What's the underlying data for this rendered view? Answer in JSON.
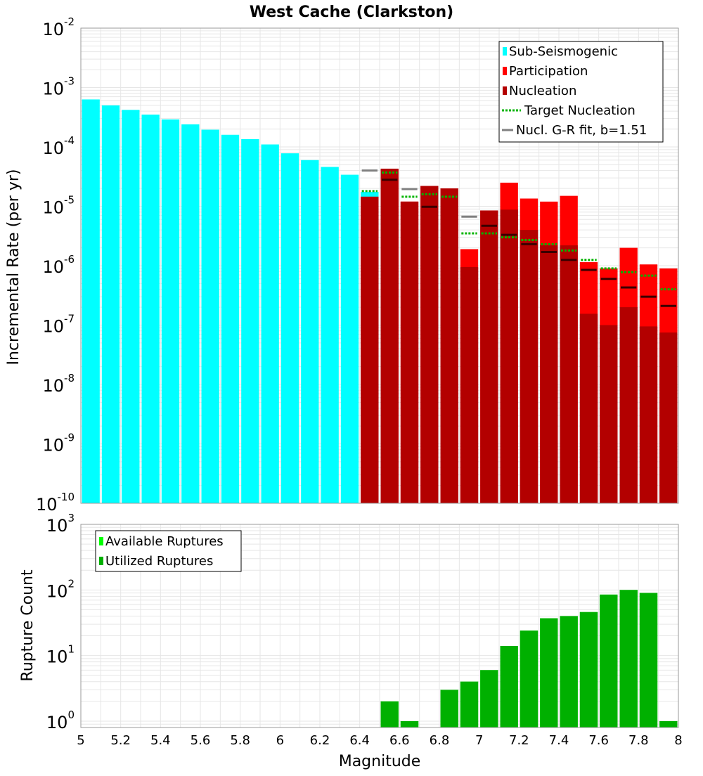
{
  "title": "West Cache (Clarkston)",
  "colors": {
    "sub_seismogenic": "#00ffff",
    "participation": "#ff0000",
    "nucleation": "#b30000",
    "target_nucleation": "#00b400",
    "gr_fit": "#808080",
    "nucl_tick": "#3a0000",
    "available": "#00ff00",
    "utilized": "#00b000",
    "grid": "#e6e6e6"
  },
  "x_axis": {
    "label": "Magnitude",
    "min": 5.0,
    "max": 8.0,
    "ticks": [
      "5",
      "5.2",
      "5.4",
      "5.6",
      "5.8",
      "6",
      "6.2",
      "6.4",
      "6.6",
      "6.8",
      "7",
      "7.2",
      "7.4",
      "7.6",
      "7.8",
      "8"
    ]
  },
  "chart_data": [
    {
      "type": "bar",
      "name": "rate-panel",
      "title": "West Cache (Clarkston)",
      "xlabel": "",
      "ylabel": "Incremental Rate (per yr)",
      "yscale": "log",
      "ylim": [
        1e-10,
        0.01
      ],
      "y_tick_labels": [
        {
          "base": "10",
          "exp": "-2"
        },
        {
          "base": "10",
          "exp": "-3"
        },
        {
          "base": "10",
          "exp": "-4"
        },
        {
          "base": "10",
          "exp": "-5"
        },
        {
          "base": "10",
          "exp": "-6"
        },
        {
          "base": "10",
          "exp": "-7"
        },
        {
          "base": "10",
          "exp": "-8"
        },
        {
          "base": "10",
          "exp": "-9"
        },
        {
          "base": "10",
          "exp": "-10"
        }
      ],
      "bin_width": 0.1,
      "legend": [
        "Sub-Seismogenic",
        "Participation",
        "Nucleation",
        "Target Nucleation",
        "Nucl. G-R fit, b=1.51"
      ],
      "legend_position": "top-right",
      "sub_seismogenic": {
        "x": [
          5.05,
          5.15,
          5.25,
          5.35,
          5.45,
          5.55,
          5.65,
          5.75,
          5.85,
          5.95,
          6.05,
          6.15,
          6.25,
          6.35,
          6.45
        ],
        "values": [
          0.00063,
          0.0005,
          0.00042,
          0.00035,
          0.00029,
          0.00024,
          0.000195,
          0.00016,
          0.000135,
          0.00011,
          7.8e-05,
          6e-05,
          4.6e-05,
          3.4e-05,
          1.75e-05
        ]
      },
      "participation": {
        "x": [
          6.45,
          6.55,
          6.65,
          6.75,
          6.85,
          6.95,
          7.05,
          7.15,
          7.25,
          7.35,
          7.45,
          7.55,
          7.65,
          7.75,
          7.85,
          7.95
        ],
        "values": [
          1.45e-05,
          4.3e-05,
          1.2e-05,
          2.2e-05,
          2e-05,
          1.9e-06,
          8.5e-06,
          2.5e-05,
          1.35e-05,
          1.2e-05,
          1.5e-05,
          1.15e-06,
          9e-07,
          2e-06,
          1.05e-06,
          9e-07
        ]
      },
      "nucleation": {
        "x": [
          6.45,
          6.55,
          6.65,
          6.75,
          6.85,
          6.95,
          7.05,
          7.15,
          7.25,
          7.35,
          7.45,
          7.55,
          7.65,
          7.75,
          7.85,
          7.95
        ],
        "values": [
          1.45e-05,
          4.3e-05,
          1.2e-05,
          2.2e-05,
          2e-05,
          9.5e-07,
          8.5e-06,
          8.8e-06,
          4e-06,
          2.2e-06,
          2.2e-06,
          1.55e-07,
          1e-07,
          2e-07,
          9.5e-08,
          7.5e-08
        ]
      },
      "target_nucleation": {
        "x": [
          6.45,
          6.55,
          6.65,
          6.75,
          6.85,
          6.95,
          7.05,
          7.15,
          7.25,
          7.35,
          7.45,
          7.55,
          7.65,
          7.75,
          7.85,
          7.95
        ],
        "values": [
          1.8e-05,
          3.7e-05,
          1.45e-05,
          1.6e-05,
          1.45e-05,
          3.5e-06,
          3.5e-06,
          3e-06,
          2.7e-06,
          2.3e-06,
          1.8e-06,
          1.25e-06,
          9e-07,
          7.8e-07,
          6.8e-07,
          4e-07
        ]
      },
      "gr_fit": {
        "x": [
          6.45,
          6.65,
          6.95
        ],
        "values": [
          4e-05,
          1.95e-05,
          6.7e-06
        ]
      },
      "nucl_gr_ticks": {
        "x": [
          6.55,
          6.75,
          7.05,
          7.15,
          7.25,
          7.35,
          7.45,
          7.55,
          7.65,
          7.75,
          7.85,
          7.95
        ],
        "values": [
          2.8e-05,
          9.8e-06,
          4.7e-06,
          3.3e-06,
          2.3e-06,
          1.7e-06,
          1.25e-06,
          8.5e-07,
          6e-07,
          4.3e-07,
          3e-07,
          2.1e-07
        ]
      }
    },
    {
      "type": "bar",
      "name": "count-panel",
      "xlabel": "Magnitude",
      "ylabel": "Rupture Count",
      "yscale": "log",
      "ylim": [
        0.8,
        1000
      ],
      "y_tick_labels": [
        {
          "base": "10",
          "exp": "3"
        },
        {
          "base": "10",
          "exp": "2"
        },
        {
          "base": "10",
          "exp": "1"
        },
        {
          "base": "10",
          "exp": "0"
        }
      ],
      "legend": [
        "Available Ruptures",
        "Utilized Ruptures"
      ],
      "legend_position": "top-left",
      "x": [
        6.55,
        6.65,
        6.85,
        6.95,
        7.05,
        7.15,
        7.25,
        7.35,
        7.45,
        7.55,
        7.65,
        7.75,
        7.85,
        7.95
      ],
      "series": [
        {
          "name": "Available Ruptures",
          "values": [
            2,
            1,
            3,
            4,
            6,
            14,
            24,
            37,
            40,
            46,
            85,
            100,
            90,
            1
          ]
        },
        {
          "name": "Utilized Ruptures",
          "values": [
            2,
            1,
            3,
            4,
            6,
            14,
            24,
            37,
            40,
            46,
            85,
            100,
            90,
            1
          ]
        }
      ]
    }
  ]
}
